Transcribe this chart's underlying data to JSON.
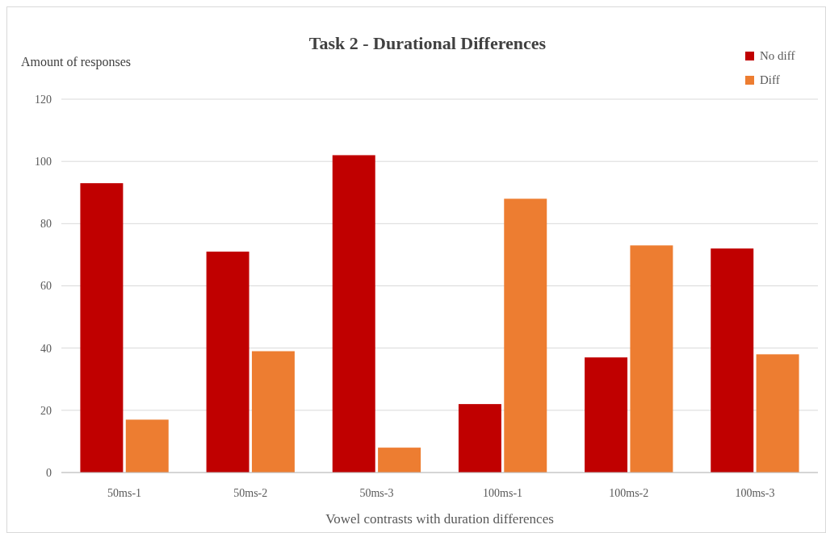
{
  "chart_data": {
    "type": "bar",
    "title": "Task 2 - Durational Differences",
    "xlabel": "Vowel contrasts with duration differences",
    "ylabel": "Amount of responses",
    "categories": [
      "50ms-1",
      "50ms-2",
      "50ms-3",
      "100ms-1",
      "100ms-2",
      "100ms-3"
    ],
    "series": [
      {
        "name": "No diff",
        "color": "#c00000",
        "values": [
          93,
          71,
          102,
          22,
          37,
          72
        ]
      },
      {
        "name": "Diff",
        "color": "#ed7d31",
        "values": [
          17,
          39,
          8,
          88,
          73,
          38
        ]
      }
    ],
    "ylim": [
      0,
      120
    ],
    "yticks": [
      0,
      20,
      40,
      60,
      80,
      100,
      120
    ],
    "grid": "y",
    "legend": "top right"
  }
}
